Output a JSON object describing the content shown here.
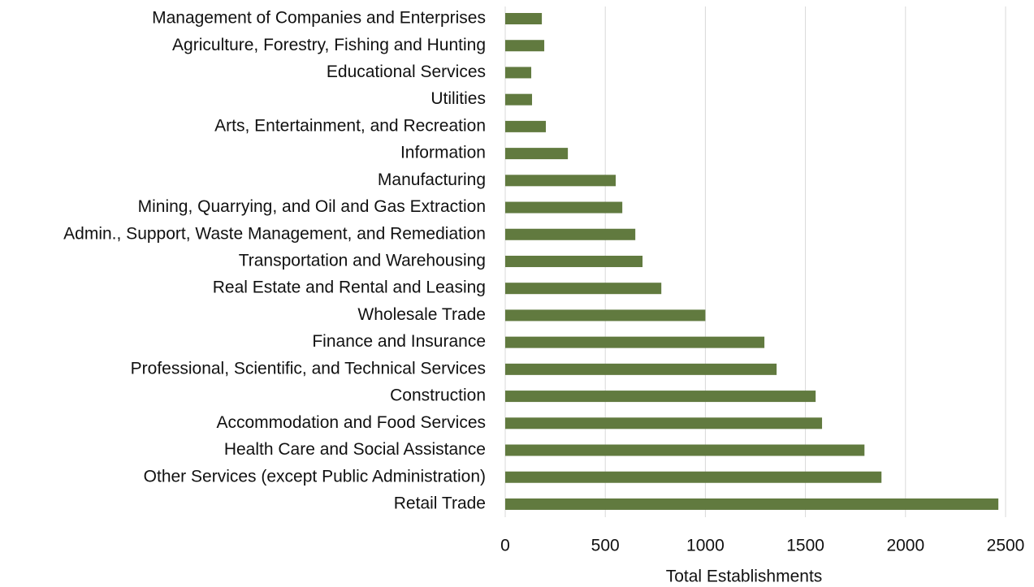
{
  "chart_data": {
    "type": "hbar",
    "x_label": "Total Establishments",
    "categories": [
      "Management of Companies and Enterprises",
      "Agriculture, Forestry, Fishing and Hunting",
      "Educational Services",
      "Utilities",
      "Arts, Entertainment, and Recreation",
      "Information",
      "Manufacturing",
      "Mining, Quarrying, and Oil and Gas Extraction",
      "Admin., Support, Waste Management, and Remediation",
      "Transportation and Warehousing",
      "Real Estate and Rental and Leasing",
      "Wholesale Trade",
      "Finance and Insurance",
      "Professional, Scientific, and Technical Services",
      "Construction",
      "Accommodation and Food Services",
      "Health Care and Social Assistance",
      "Other Services (except Public Administration)",
      "Retail Trade"
    ],
    "values": [
      183,
      195,
      130,
      134,
      203,
      313,
      552,
      585,
      650,
      686,
      780,
      1000,
      1295,
      1356,
      1551,
      1583,
      1795,
      1880,
      2464
    ],
    "color": "#617a3f",
    "xlim": [
      0,
      2500
    ],
    "xticks": [
      0,
      500,
      1000,
      1500,
      2000,
      2500
    ],
    "grid": true
  }
}
